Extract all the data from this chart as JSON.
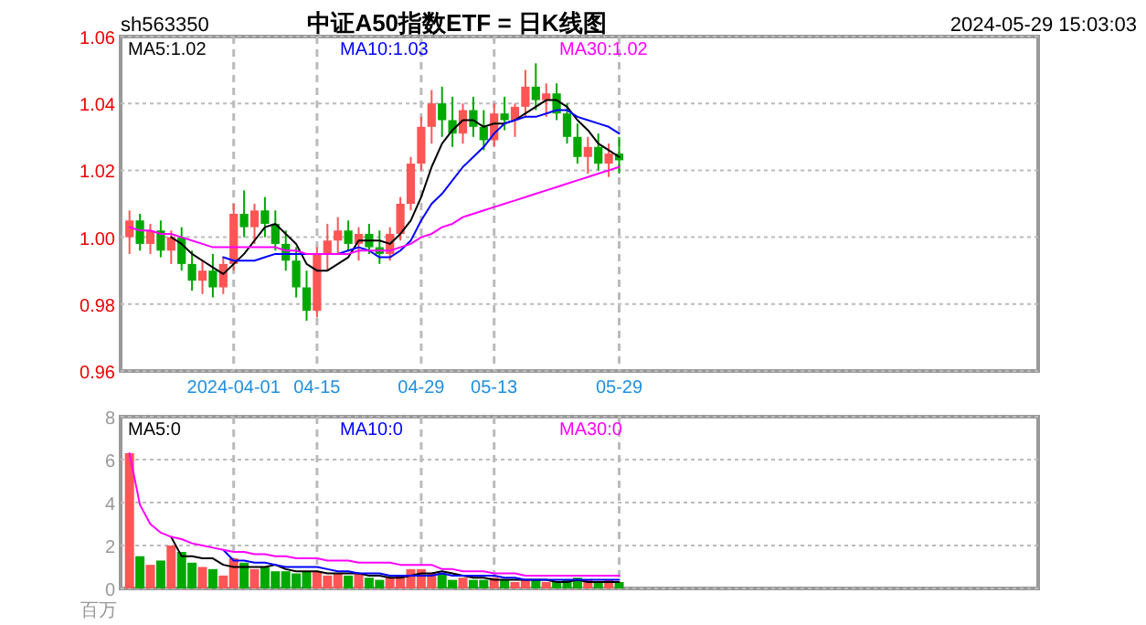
{
  "chart_data": [
    {
      "type": "candlestick",
      "title": "中证A50指数ETF = 日K线图",
      "annotations": [
        "sh563350",
        "2024-05-29 15:03:03"
      ],
      "categories": [
        null,
        null,
        null,
        null,
        null,
        null,
        null,
        null,
        null,
        null,
        "2024-04-01",
        null,
        null,
        null,
        null,
        null,
        null,
        null,
        "04-15",
        null,
        null,
        null,
        null,
        null,
        null,
        null,
        null,
        null,
        "04-29",
        null,
        null,
        null,
        null,
        null,
        null,
        "05-13",
        null,
        null,
        null,
        null,
        null,
        null,
        null,
        null,
        null,
        null,
        null,
        "05-29"
      ],
      "ohlc": [
        [
          1.0,
          1.008,
          0.995,
          1.005
        ],
        [
          1.005,
          1.007,
          0.996,
          0.998
        ],
        [
          0.998,
          1.004,
          0.995,
          1.002
        ],
        [
          1.002,
          1.005,
          0.994,
          0.996
        ],
        [
          0.996,
          1.002,
          0.992,
          1.0
        ],
        [
          1.0,
          1.003,
          0.99,
          0.992
        ],
        [
          0.992,
          0.996,
          0.984,
          0.987
        ],
        [
          0.987,
          0.993,
          0.983,
          0.99
        ],
        [
          0.99,
          0.995,
          0.982,
          0.985
        ],
        [
          0.985,
          0.994,
          0.983,
          0.992
        ],
        [
          0.992,
          1.01,
          0.99,
          1.007
        ],
        [
          1.007,
          1.014,
          1.0,
          1.003
        ],
        [
          1.003,
          1.01,
          0.998,
          1.008
        ],
        [
          1.008,
          1.012,
          1.0,
          1.004
        ],
        [
          1.004,
          1.008,
          0.996,
          0.998
        ],
        [
          0.998,
          1.002,
          0.99,
          0.993
        ],
        [
          0.993,
          0.997,
          0.982,
          0.985
        ],
        [
          0.985,
          0.99,
          0.975,
          0.978
        ],
        [
          0.978,
          0.997,
          0.976,
          0.995
        ],
        [
          0.995,
          1.004,
          0.99,
          0.999
        ],
        [
          0.999,
          1.006,
          0.995,
          1.002
        ],
        [
          1.002,
          1.005,
          0.996,
          0.998
        ],
        [
          0.998,
          1.003,
          0.993,
          1.001
        ],
        [
          1.001,
          1.004,
          0.995,
          0.997
        ],
        [
          0.997,
          1.002,
          0.992,
          0.995
        ],
        [
          0.995,
          1.003,
          0.993,
          1.001
        ],
        [
          1.001,
          1.012,
          0.999,
          1.01
        ],
        [
          1.01,
          1.024,
          1.008,
          1.022
        ],
        [
          1.022,
          1.036,
          1.02,
          1.033
        ],
        [
          1.033,
          1.044,
          1.028,
          1.04
        ],
        [
          1.04,
          1.045,
          1.03,
          1.035
        ],
        [
          1.035,
          1.042,
          1.027,
          1.031
        ],
        [
          1.031,
          1.04,
          1.028,
          1.038
        ],
        [
          1.038,
          1.042,
          1.03,
          1.033
        ],
        [
          1.033,
          1.038,
          1.026,
          1.029
        ],
        [
          1.029,
          1.04,
          1.027,
          1.037
        ],
        [
          1.037,
          1.042,
          1.032,
          1.035
        ],
        [
          1.035,
          1.04,
          1.03,
          1.039
        ],
        [
          1.039,
          1.05,
          1.036,
          1.045
        ],
        [
          1.045,
          1.052,
          1.038,
          1.041
        ],
        [
          1.041,
          1.046,
          1.036,
          1.043
        ],
        [
          1.043,
          1.046,
          1.035,
          1.037
        ],
        [
          1.037,
          1.04,
          1.028,
          1.03
        ],
        [
          1.03,
          1.034,
          1.022,
          1.024
        ],
        [
          1.024,
          1.03,
          1.019,
          1.027
        ],
        [
          1.027,
          1.031,
          1.02,
          1.022
        ],
        [
          1.022,
          1.028,
          1.018,
          1.025
        ],
        [
          1.025,
          1.03,
          1.019,
          1.023
        ]
      ],
      "colors": [
        "#ff5555",
        "#00a800",
        "#ff5555",
        "#00a800",
        "#ff5555",
        "#00a800",
        "#00a800",
        "#ff5555",
        "#00a800",
        "#ff5555",
        "#ff5555",
        "#00a800",
        "#ff5555",
        "#00a800",
        "#00a800",
        "#00a800",
        "#00a800",
        "#00a800",
        "#ff5555",
        "#ff5555",
        "#ff5555",
        "#00a800",
        "#ff5555",
        "#00a800",
        "#00a800",
        "#ff5555",
        "#ff5555",
        "#ff5555",
        "#ff5555",
        "#ff5555",
        "#00a800",
        "#00a800",
        "#ff5555",
        "#00a800",
        "#00a800",
        "#ff5555",
        "#00a800",
        "#ff5555",
        "#ff5555",
        "#00a800",
        "#ff5555",
        "#00a800",
        "#00a800",
        "#00a800",
        "#ff5555",
        "#00a800",
        "#ff5555",
        "#00a800"
      ],
      "series": [
        {
          "type": "line",
          "name": "MA5:1.02",
          "color": "#000000",
          "values": [
            null,
            null,
            null,
            null,
            1.0,
            0.998,
            0.995,
            0.993,
            0.991,
            0.989,
            0.992,
            0.995,
            0.999,
            1.003,
            1.004,
            1.001,
            0.998,
            0.992,
            0.99,
            0.99,
            0.992,
            0.994,
            0.999,
            0.999,
            0.999,
            0.998,
            1.001,
            1.005,
            1.012,
            1.021,
            1.028,
            1.032,
            1.035,
            1.035,
            1.033,
            1.034,
            1.034,
            1.035,
            1.037,
            1.039,
            1.041,
            1.041,
            1.039,
            1.035,
            1.032,
            1.028,
            1.026,
            1.024
          ]
        },
        {
          "type": "line",
          "name": "MA10:1.03",
          "color": "#0000ff",
          "values": [
            null,
            null,
            null,
            null,
            null,
            null,
            null,
            null,
            null,
            0.994,
            0.993,
            0.993,
            0.993,
            0.994,
            0.995,
            0.995,
            0.995,
            0.995,
            0.995,
            0.995,
            0.995,
            0.996,
            0.997,
            0.996,
            0.994,
            0.994,
            0.996,
            0.999,
            1.005,
            1.01,
            1.013,
            1.017,
            1.021,
            1.024,
            1.027,
            1.031,
            1.034,
            1.035,
            1.036,
            1.036,
            1.037,
            1.038,
            1.038,
            1.036,
            1.035,
            1.034,
            1.033,
            1.031
          ]
        },
        {
          "type": "line",
          "name": "MA30:1.02",
          "color": "#ff00ff",
          "values": [
            1.003,
            1.002,
            1.002,
            1.001,
            1.001,
            1.0,
            0.999,
            0.998,
            0.997,
            0.997,
            0.997,
            0.997,
            0.997,
            0.997,
            0.997,
            0.996,
            0.996,
            0.995,
            0.995,
            0.995,
            0.995,
            0.995,
            0.996,
            0.996,
            0.996,
            0.996,
            0.997,
            0.998,
            1.0,
            1.001,
            1.003,
            1.004,
            1.006,
            1.007,
            1.008,
            1.009,
            1.01,
            1.011,
            1.012,
            1.013,
            1.014,
            1.015,
            1.016,
            1.017,
            1.018,
            1.019,
            1.02,
            1.021
          ]
        }
      ],
      "ylim": [
        0.96,
        1.06
      ],
      "yticks": [
        {
          "value": 0.96,
          "label": "0.96"
        },
        {
          "value": 0.98,
          "label": "0.98"
        },
        {
          "value": 1.0,
          "label": "1.00"
        },
        {
          "value": 1.02,
          "label": "1.02"
        },
        {
          "value": 1.04,
          "label": "1.04"
        },
        {
          "value": 1.06,
          "label": "1.06"
        }
      ],
      "grid": true
    },
    {
      "type": "bar",
      "ylabel": "百万",
      "categories": [
        null,
        null,
        null,
        null,
        null,
        null,
        null,
        null,
        null,
        null,
        null,
        null,
        null,
        null,
        null,
        null,
        null,
        null,
        null,
        null,
        null,
        null,
        null,
        null,
        null,
        null,
        null,
        null,
        null,
        null,
        null,
        null,
        null,
        null,
        null,
        null,
        null,
        null,
        null,
        null,
        null,
        null,
        null,
        null,
        null,
        null,
        null,
        null
      ],
      "series": [
        {
          "type": "bar",
          "values": [
            6.3,
            1.5,
            1.1,
            1.3,
            2.0,
            1.7,
            1.2,
            1.0,
            0.9,
            0.6,
            1.4,
            1.2,
            0.9,
            1.0,
            0.8,
            0.8,
            0.7,
            0.8,
            0.8,
            0.6,
            0.7,
            0.6,
            0.7,
            0.5,
            0.4,
            0.5,
            0.6,
            0.9,
            0.9,
            0.7,
            0.7,
            0.4,
            0.5,
            0.4,
            0.4,
            0.5,
            0.4,
            0.3,
            0.4,
            0.4,
            0.3,
            0.3,
            0.4,
            0.5,
            0.4,
            0.3,
            0.4,
            0.3
          ],
          "colors": [
            "#ff5555",
            "#00a800",
            "#ff5555",
            "#00a800",
            "#ff5555",
            "#00a800",
            "#00a800",
            "#ff5555",
            "#00a800",
            "#ff5555",
            "#ff5555",
            "#00a800",
            "#ff5555",
            "#00a800",
            "#00a800",
            "#00a800",
            "#00a800",
            "#00a800",
            "#ff5555",
            "#ff5555",
            "#ff5555",
            "#00a800",
            "#ff5555",
            "#00a800",
            "#00a800",
            "#ff5555",
            "#ff5555",
            "#ff5555",
            "#ff5555",
            "#ff5555",
            "#00a800",
            "#00a800",
            "#ff5555",
            "#00a800",
            "#00a800",
            "#ff5555",
            "#00a800",
            "#ff5555",
            "#ff5555",
            "#00a800",
            "#ff5555",
            "#00a800",
            "#00a800",
            "#00a800",
            "#ff5555",
            "#00a800",
            "#ff5555",
            "#00a800"
          ]
        },
        {
          "type": "line",
          "name": "MA5:0",
          "color": "#000000",
          "values": [
            null,
            null,
            null,
            null,
            2.4,
            1.5,
            1.5,
            1.4,
            1.4,
            1.1,
            1.0,
            1.0,
            1.0,
            1.0,
            1.1,
            0.9,
            0.8,
            0.8,
            0.8,
            0.7,
            0.7,
            0.7,
            0.7,
            0.6,
            0.6,
            0.5,
            0.5,
            0.6,
            0.7,
            0.7,
            0.8,
            0.7,
            0.6,
            0.5,
            0.5,
            0.4,
            0.4,
            0.4,
            0.4,
            0.4,
            0.4,
            0.3,
            0.3,
            0.4,
            0.3,
            0.3,
            0.3,
            0.3
          ]
        },
        {
          "type": "line",
          "name": "MA10:0",
          "color": "#0000ff",
          "values": [
            null,
            null,
            null,
            null,
            null,
            null,
            null,
            null,
            null,
            1.8,
            1.3,
            1.3,
            1.2,
            1.2,
            1.1,
            1.0,
            1.0,
            1.0,
            1.0,
            0.9,
            0.8,
            0.8,
            0.7,
            0.7,
            0.7,
            0.6,
            0.6,
            0.6,
            0.6,
            0.6,
            0.7,
            0.6,
            0.6,
            0.6,
            0.6,
            0.6,
            0.5,
            0.5,
            0.4,
            0.4,
            0.4,
            0.4,
            0.4,
            0.4,
            0.4,
            0.4,
            0.4,
            0.4
          ]
        },
        {
          "type": "line",
          "name": "MA30:0",
          "color": "#ff00ff",
          "values": [
            6.3,
            3.9,
            3.0,
            2.6,
            2.4,
            2.3,
            2.1,
            2.0,
            1.9,
            1.8,
            1.7,
            1.7,
            1.6,
            1.6,
            1.5,
            1.5,
            1.4,
            1.4,
            1.4,
            1.3,
            1.3,
            1.3,
            1.2,
            1.2,
            1.2,
            1.2,
            1.1,
            1.1,
            1.1,
            1.1,
            0.9,
            0.9,
            0.8,
            0.8,
            0.8,
            0.7,
            0.7,
            0.7,
            0.6,
            0.6,
            0.6,
            0.6,
            0.6,
            0.6,
            0.6,
            0.6,
            0.6,
            0.6
          ]
        }
      ],
      "ylim": [
        0,
        8
      ],
      "yticks": [
        0,
        2,
        4,
        6,
        8
      ],
      "grid": true,
      "tick_labels": "y"
    }
  ]
}
